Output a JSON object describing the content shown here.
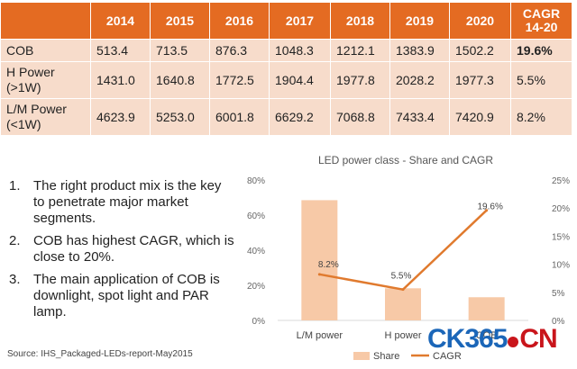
{
  "table": {
    "headers": [
      "",
      "2014",
      "2015",
      "2016",
      "2017",
      "2018",
      "2019",
      "2020"
    ],
    "cagr_header": [
      "CAGR",
      "14-20"
    ],
    "rows": [
      {
        "label": [
          "COB"
        ],
        "values": [
          "513.4",
          "713.5",
          "876.3",
          "1048.3",
          "1212.1",
          "1383.9",
          "1502.2"
        ],
        "cagr": "19.6%",
        "cagr_bold": true
      },
      {
        "label": [
          "H Power",
          "(>1W)"
        ],
        "values": [
          "1431.0",
          "1640.8",
          "1772.5",
          "1904.4",
          "1977.8",
          "2028.2",
          "1977.3"
        ],
        "cagr": "5.5%",
        "cagr_bold": false
      },
      {
        "label": [
          "L/M Power",
          "(<1W)"
        ],
        "values": [
          "4623.9",
          "5253.0",
          "6001.8",
          "6629.2",
          "7068.8",
          "7433.4",
          "7420.9"
        ],
        "cagr": "8.2%",
        "cagr_bold": false
      }
    ]
  },
  "points": [
    {
      "num": "1.",
      "text": "The right product mix is the key to penetrate major market segments."
    },
    {
      "num": "2.",
      "text": "COB has highest CAGR, which is close to 20%."
    },
    {
      "num": "3.",
      "text": "The main application of COB is downlight, spot light and PAR lamp."
    }
  ],
  "source": "Source: IHS_Packaged-LEDs-report-May2015",
  "watermark": {
    "text": "CK365",
    "suffix": "CN"
  },
  "chart_data": {
    "type": "bar",
    "title": "LED power class - Share and CAGR",
    "categories": [
      "L/M power",
      "H power",
      "COB"
    ],
    "series": [
      {
        "name": "Share",
        "kind": "bar",
        "axis": "left",
        "values": [
          68.5,
          18.3,
          13.2
        ],
        "color": "#f7c9a7"
      },
      {
        "name": "CAGR",
        "kind": "line",
        "axis": "right",
        "values": [
          8.2,
          5.5,
          19.6
        ],
        "labels": [
          "8.2%",
          "5.5%",
          "19.6%"
        ],
        "color": "#e07a2e"
      }
    ],
    "y_left": {
      "ticks": [
        "0%",
        "20%",
        "40%",
        "60%",
        "80%"
      ],
      "ylim": [
        0,
        80
      ]
    },
    "y_right": {
      "ticks": [
        "0%",
        "5%",
        "10%",
        "15%",
        "20%",
        "25%"
      ],
      "ylim": [
        0,
        25
      ]
    },
    "legend": "bottom",
    "grid": false
  }
}
